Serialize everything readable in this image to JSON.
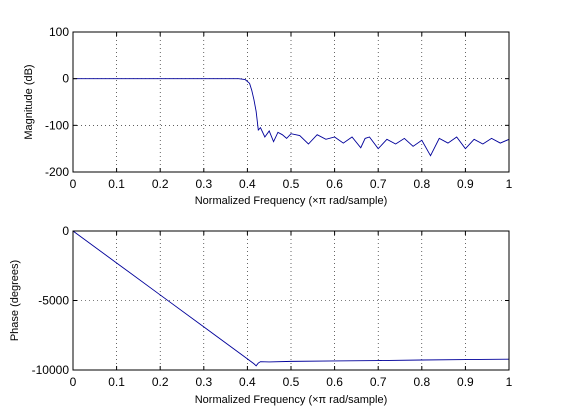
{
  "chart_data": [
    {
      "type": "line",
      "xlabel": "Normalized Frequency  (×π rad/sample)",
      "ylabel": "Magnitude (dB)",
      "xlim": [
        0,
        1
      ],
      "ylim": [
        -200,
        100
      ],
      "grid": "dotted",
      "x_ticks": [
        0,
        0.1,
        0.2,
        0.3,
        0.4,
        0.5,
        0.6,
        0.7,
        0.8,
        0.9,
        1
      ],
      "x_tick_labels": [
        "0",
        "0.1",
        "0.2",
        "0.3",
        "0.4",
        "0.5",
        "0.6",
        "0.7",
        "0.8",
        "0.9",
        "1"
      ],
      "y_ticks": [
        100,
        0,
        -100,
        -200
      ],
      "y_tick_labels": [
        "100",
        "0",
        "-100",
        "-200"
      ],
      "series": [
        {
          "color": "#00009a",
          "x": [
            0,
            0.1,
            0.2,
            0.3,
            0.38,
            0.395,
            0.405,
            0.41,
            0.415,
            0.42,
            0.425,
            0.43,
            0.44,
            0.45,
            0.46,
            0.47,
            0.48,
            0.49,
            0.5,
            0.52,
            0.54,
            0.56,
            0.58,
            0.6,
            0.62,
            0.64,
            0.66,
            0.67,
            0.68,
            0.7,
            0.72,
            0.74,
            0.76,
            0.78,
            0.8,
            0.82,
            0.84,
            0.86,
            0.88,
            0.9,
            0.92,
            0.94,
            0.96,
            0.98,
            1
          ],
          "values": [
            0,
            0,
            0,
            0,
            0,
            -2,
            -10,
            -25,
            -45,
            -70,
            -110,
            -105,
            -125,
            -112,
            -135,
            -115,
            -120,
            -128,
            -118,
            -122,
            -140,
            -120,
            -130,
            -125,
            -138,
            -125,
            -148,
            -128,
            -125,
            -150,
            -130,
            -140,
            -128,
            -145,
            -132,
            -165,
            -128,
            -138,
            -125,
            -150,
            -130,
            -140,
            -128,
            -138,
            -130
          ]
        }
      ]
    },
    {
      "type": "line",
      "xlabel": "Normalized Frequency  (×π rad/sample)",
      "ylabel": "Phase (degrees)",
      "xlim": [
        0,
        1
      ],
      "ylim": [
        -10000,
        0
      ],
      "grid": "dotted",
      "x_ticks": [
        0,
        0.1,
        0.2,
        0.3,
        0.4,
        0.5,
        0.6,
        0.7,
        0.8,
        0.9,
        1
      ],
      "x_tick_labels": [
        "0",
        "0.1",
        "0.2",
        "0.3",
        "0.4",
        "0.5",
        "0.6",
        "0.7",
        "0.8",
        "0.9",
        "1"
      ],
      "y_ticks": [
        0,
        -5000,
        -10000
      ],
      "y_tick_labels": [
        "0",
        "-5000",
        "-10000"
      ],
      "series": [
        {
          "color": "#00009a",
          "x": [
            0,
            0.1,
            0.2,
            0.3,
            0.4,
            0.415,
            0.42,
            0.425,
            0.43,
            0.45,
            0.5,
            0.6,
            0.7,
            0.8,
            0.9,
            1
          ],
          "values": [
            0,
            -2300,
            -4600,
            -6900,
            -9200,
            -9550,
            -9700,
            -9500,
            -9400,
            -9420,
            -9380,
            -9350,
            -9320,
            -9280,
            -9250,
            -9220
          ]
        }
      ]
    }
  ]
}
